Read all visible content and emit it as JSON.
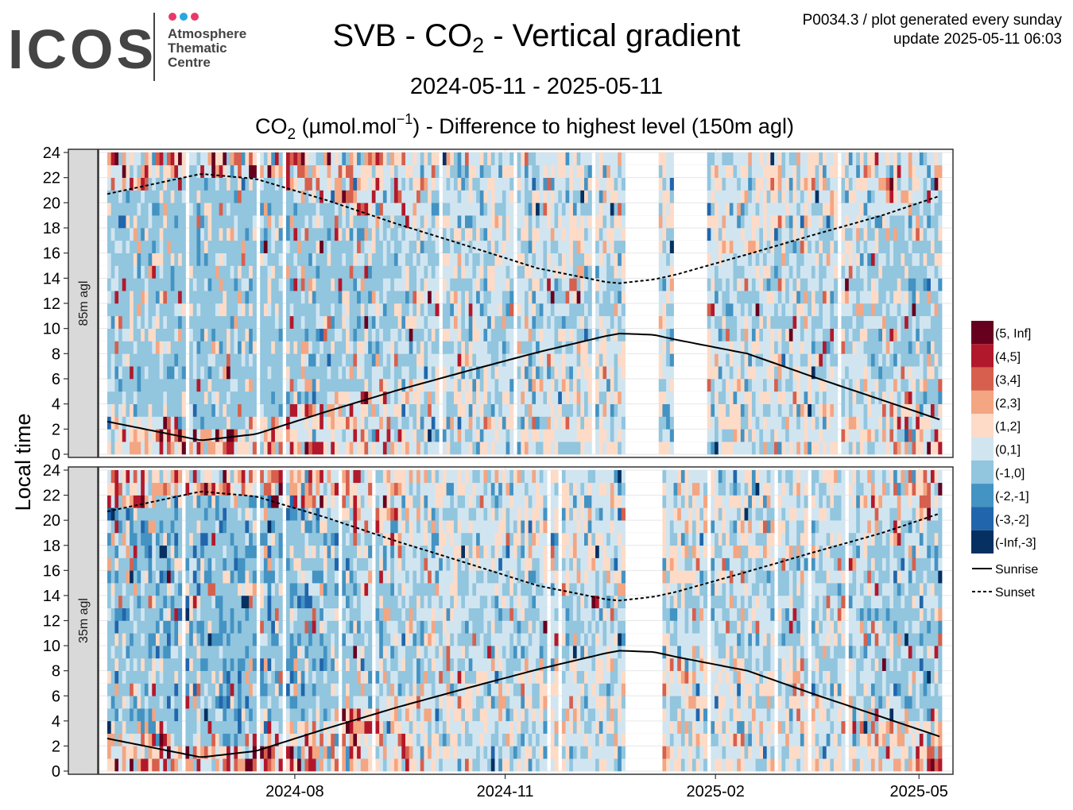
{
  "logo": {
    "wordmark": "ICOS",
    "line1": "Atmosphere",
    "line2": "Thematic",
    "line3": "Centre",
    "dot_colors": [
      "#e8396b",
      "#2aa7df",
      "#e8396b"
    ]
  },
  "header": {
    "title_pre": "SVB - CO",
    "title_sub": "2",
    "title_post": " - Vertical gradient",
    "date_range": "2024-05-11 - 2025-05-11",
    "plot_info": "P0034.3 / plot generated every sunday",
    "update_info": "update  2025-05-11 06:03"
  },
  "chart_data": {
    "type": "heatmap",
    "title": "SVB - CO2 - Vertical gradient",
    "subtitle_pre": "CO",
    "subtitle_sub": "2",
    "subtitle_mid": " (µmol.mol",
    "subtitle_sup": "−1",
    "subtitle_post": ") - Difference to highest level (150m agl)",
    "ylabel": "Local time",
    "x_range": [
      "2024-05-11",
      "2025-05-11"
    ],
    "ylim": [
      0,
      24
    ],
    "y_ticks": [
      "0",
      "2",
      "4",
      "6",
      "8",
      "10",
      "12",
      "14",
      "16",
      "18",
      "20",
      "22",
      "24"
    ],
    "x_ticks": [
      {
        "date": "2024-08-01",
        "label": "2024-08"
      },
      {
        "date": "2024-11-01",
        "label": "2024-11"
      },
      {
        "date": "2025-02-01",
        "label": "2025-02"
      },
      {
        "date": "2025-05-01",
        "label": "2025-05"
      }
    ],
    "grid": true,
    "legend_position": "right",
    "panels": [
      {
        "label": "85m agl"
      },
      {
        "label": "35m agl"
      }
    ],
    "color_scale": [
      {
        "label": "(5, Inf]",
        "color": "#67001f"
      },
      {
        "label": "(4,5]",
        "color": "#b2182b"
      },
      {
        "label": "(3,4]",
        "color": "#d6604d"
      },
      {
        "label": "(2,3]",
        "color": "#f4a582"
      },
      {
        "label": "(1,2]",
        "color": "#fddbc7"
      },
      {
        "label": "(0,1]",
        "color": "#d1e5f0"
      },
      {
        "label": "(-1,0]",
        "color": "#92c5de"
      },
      {
        "label": "(-2,-1]",
        "color": "#4393c3"
      },
      {
        "label": "(-3,-2]",
        "color": "#2166ac"
      },
      {
        "label": "(-Inf,-3]",
        "color": "#053061"
      }
    ],
    "lines": [
      {
        "label": "Sunrise",
        "style": "solid"
      },
      {
        "label": "Sunset",
        "style": "dashed"
      }
    ],
    "sunrise": [
      {
        "date": "2024-05-11",
        "hour": 2.6
      },
      {
        "date": "2024-06-21",
        "hour": 1.1
      },
      {
        "date": "2024-07-15",
        "hour": 1.6
      },
      {
        "date": "2024-08-15",
        "hour": 3.4
      },
      {
        "date": "2024-09-15",
        "hour": 5.1
      },
      {
        "date": "2024-10-15",
        "hour": 6.6
      },
      {
        "date": "2024-11-15",
        "hour": 8.1
      },
      {
        "date": "2024-12-15",
        "hour": 9.4
      },
      {
        "date": "2024-12-21",
        "hour": 9.6
      },
      {
        "date": "2025-01-05",
        "hour": 9.5
      },
      {
        "date": "2025-01-15",
        "hour": 9.1
      },
      {
        "date": "2025-02-15",
        "hour": 8.0
      },
      {
        "date": "2025-03-15",
        "hour": 6.2
      },
      {
        "date": "2025-04-15",
        "hour": 4.3
      },
      {
        "date": "2025-05-11",
        "hour": 2.7
      }
    ],
    "sunset": [
      {
        "date": "2024-05-11",
        "hour": 20.7
      },
      {
        "date": "2024-06-21",
        "hour": 22.3
      },
      {
        "date": "2024-07-15",
        "hour": 21.9
      },
      {
        "date": "2024-08-15",
        "hour": 20.2
      },
      {
        "date": "2024-09-15",
        "hour": 18.3
      },
      {
        "date": "2024-10-15",
        "hour": 16.6
      },
      {
        "date": "2024-11-15",
        "hour": 14.8
      },
      {
        "date": "2024-12-15",
        "hour": 13.7
      },
      {
        "date": "2024-12-21",
        "hour": 13.6
      },
      {
        "date": "2025-01-05",
        "hour": 13.9
      },
      {
        "date": "2025-01-15",
        "hour": 14.3
      },
      {
        "date": "2025-02-15",
        "hour": 15.9
      },
      {
        "date": "2025-03-15",
        "hour": 17.4
      },
      {
        "date": "2025-04-15",
        "hour": 19.0
      },
      {
        "date": "2025-05-11",
        "hour": 20.6
      }
    ],
    "data_gaps": [
      {
        "start": "2024-12-23",
        "end": "2025-01-06",
        "panels": [
          0,
          1
        ]
      },
      {
        "start": "2025-01-13",
        "end": "2025-01-27",
        "panels": [
          0
        ]
      },
      {
        "start": "2024-07-25",
        "end": "2024-07-27",
        "panels": [
          0,
          1
        ]
      }
    ]
  }
}
